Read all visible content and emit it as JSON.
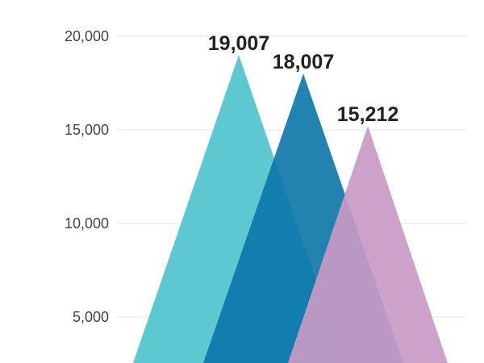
{
  "chart_data": {
    "type": "area",
    "shape": "triangle",
    "ylim": [
      3000,
      21000
    ],
    "yticks": [
      {
        "value": 20000,
        "label": "20,000"
      },
      {
        "value": 15000,
        "label": "15,000"
      },
      {
        "value": 10000,
        "label": "10,000"
      },
      {
        "value": 5000,
        "label": "5,000"
      }
    ],
    "grid": true,
    "series": [
      {
        "value": 19007,
        "label": "19,007",
        "color": "#5ec8d1",
        "opacity": 1.0
      },
      {
        "value": 18007,
        "label": "18,007",
        "color": "#0a75a8",
        "opacity": 0.9
      },
      {
        "value": 15212,
        "label": "15,212",
        "color": "#c99ac6",
        "opacity": 0.92
      }
    ]
  }
}
